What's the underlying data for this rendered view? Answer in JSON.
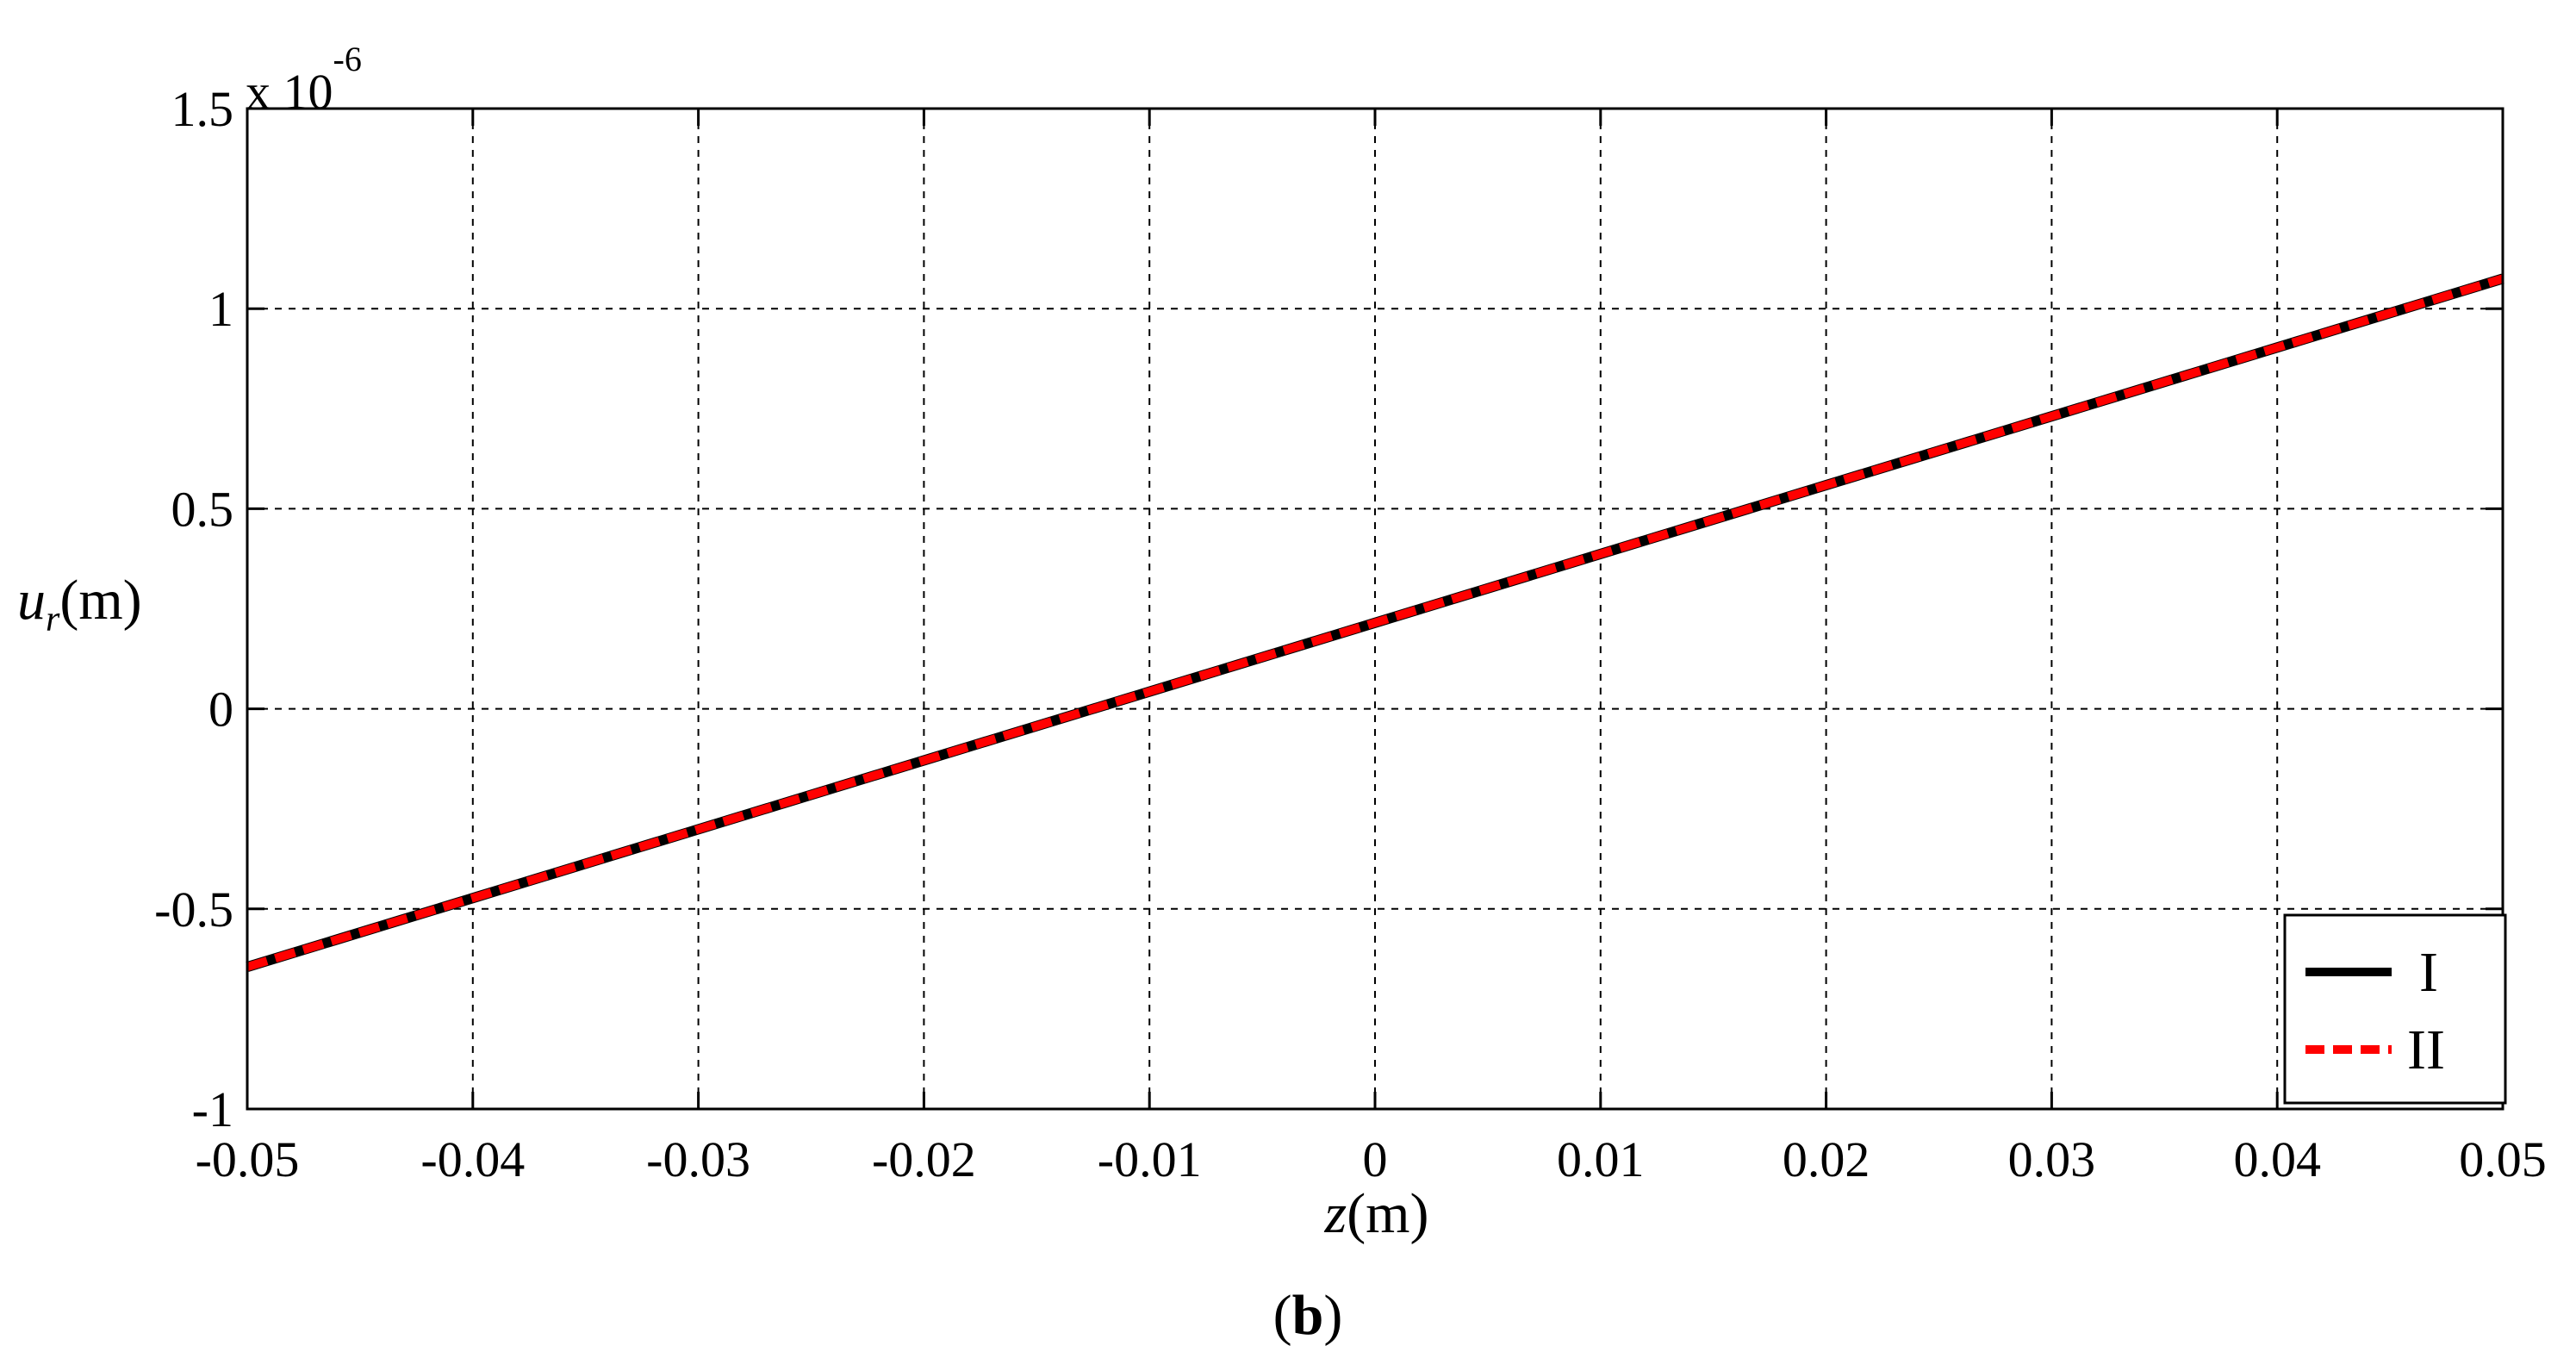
{
  "chart_data": {
    "type": "line",
    "title": "",
    "xlabel": {
      "var": "z",
      "unit": "(m)"
    },
    "ylabel": {
      "var": "u",
      "sub": "r",
      "unit": "(m)"
    },
    "y_multiplier": {
      "prefix": "x 10",
      "exponent": "-6"
    },
    "xlim": [
      -0.05,
      0.05
    ],
    "ylim": [
      -1,
      1.5
    ],
    "xticks": [
      "-0.05",
      "-0.04",
      "-0.03",
      "-0.02",
      "-0.01",
      "0",
      "0.01",
      "0.02",
      "0.03",
      "0.04",
      "0.05"
    ],
    "yticks": [
      "-1",
      "-0.5",
      "0",
      "0.5",
      "1",
      "1.5"
    ],
    "grid": true,
    "legend_position": "bottom-right",
    "series": [
      {
        "name": "I",
        "color": "#000000",
        "style": "solid",
        "x": [
          -0.05,
          0.05
        ],
        "y": [
          -0.645,
          1.075
        ]
      },
      {
        "name": "II",
        "color": "#ff0000",
        "style": "dashed",
        "x": [
          -0.05,
          0.05
        ],
        "y": [
          -0.645,
          1.075
        ]
      }
    ],
    "panel_label": "(b)"
  },
  "panel": {
    "open": "(",
    "letter": "b",
    "close": ")"
  }
}
